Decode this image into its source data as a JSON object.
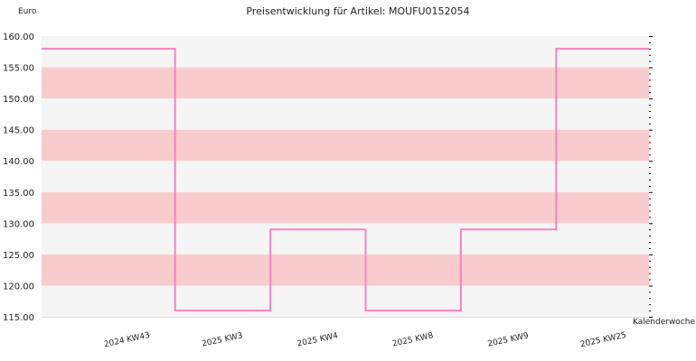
{
  "chart_data": {
    "type": "line",
    "title": "Preisentwicklung für Artikel: MOUFU0152054",
    "ylabel": "Euro",
    "xlabel": "Kalenderwoche",
    "ylim": [
      115,
      160
    ],
    "y_ticks": [
      "115.00",
      "120.00",
      "125.00",
      "130.00",
      "135.00",
      "140.00",
      "145.00",
      "150.00",
      "155.00",
      "160.00"
    ],
    "x_ticks": [
      "2024 KW43",
      "2025 KW3",
      "2025 KW4",
      "2025 KW8",
      "2025 KW9",
      "2025 KW25"
    ],
    "step": true,
    "grid": true,
    "band_colors": [
      "#f5f5f5",
      "#f8cccc"
    ],
    "series": [
      {
        "color": "#ff80c0",
        "x": [
          "2024 KW43",
          "2025 KW3",
          "2025 KW4",
          "2025 KW8",
          "2025 KW9",
          "2025 KW25"
        ],
        "values": [
          158,
          116,
          129,
          116,
          129,
          158
        ]
      }
    ]
  }
}
